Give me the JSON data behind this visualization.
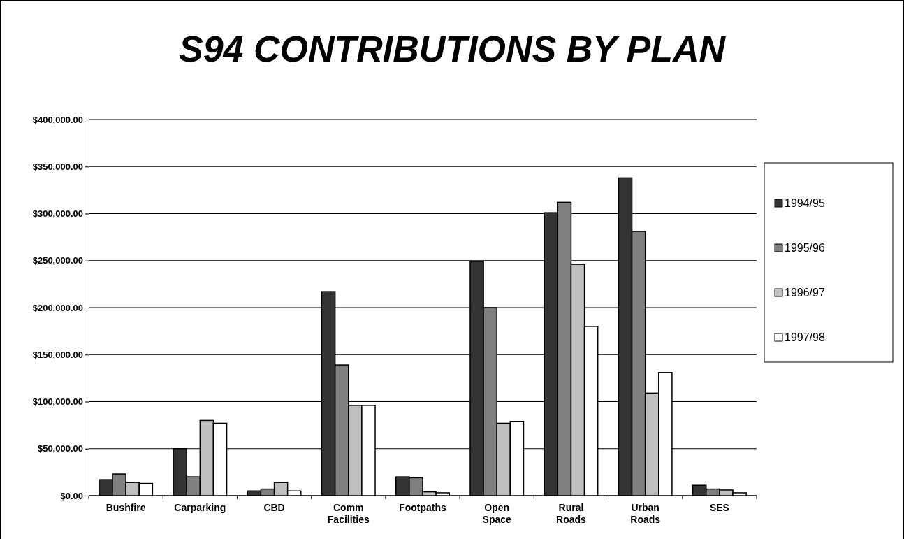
{
  "chart_data": {
    "type": "bar",
    "title": "S94 CONTRIBUTIONS BY PLAN",
    "categories": [
      "Bushfire",
      "Carparking",
      "CBD",
      "Comm Facilities",
      "Footpaths",
      "Open Space",
      "Rural Roads",
      "Urban Roads",
      "SES"
    ],
    "series": [
      {
        "name": "1994/95",
        "color": "#333333",
        "values": [
          17000,
          50000,
          5000,
          217000,
          20000,
          249000,
          301000,
          338000,
          11000
        ]
      },
      {
        "name": "1995/96",
        "color": "#808080",
        "values": [
          23000,
          20000,
          7000,
          139000,
          19000,
          200000,
          312000,
          281000,
          7000
        ]
      },
      {
        "name": "1996/97",
        "color": "#c0c0c0",
        "values": [
          14000,
          80000,
          14000,
          96000,
          4000,
          77000,
          246000,
          109000,
          6000
        ]
      },
      {
        "name": "1997/98",
        "color": "#ffffff",
        "values": [
          13000,
          77000,
          5000,
          96000,
          3000,
          79000,
          180000,
          131000,
          3000
        ]
      }
    ],
    "ylim": [
      0,
      400000
    ],
    "yticks": [
      {
        "value": 0,
        "label": "$0.00"
      },
      {
        "value": 50000,
        "label": "$50,000.00"
      },
      {
        "value": 100000,
        "label": "$100,000.00"
      },
      {
        "value": 150000,
        "label": "$150,000.00"
      },
      {
        "value": 200000,
        "label": "$200,000.00"
      },
      {
        "value": 250000,
        "label": "$250,000.00"
      },
      {
        "value": 300000,
        "label": "$300,000.00"
      },
      {
        "value": 350000,
        "label": "$350,000.00"
      },
      {
        "value": 400000,
        "label": "$400,000.00"
      }
    ],
    "grid": "y",
    "legend": "right"
  }
}
